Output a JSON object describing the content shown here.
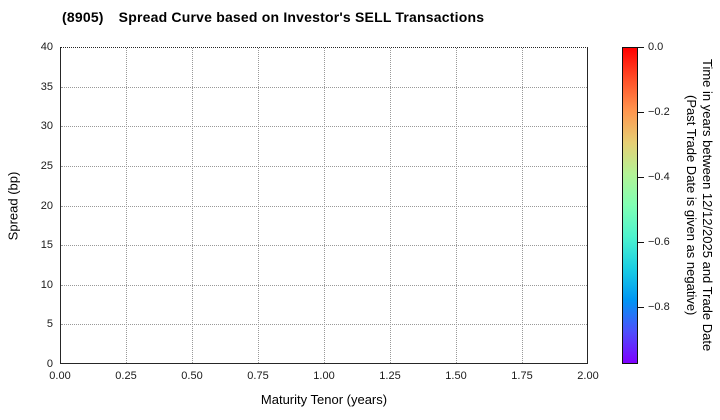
{
  "title": {
    "code": "(8905)",
    "text": "Spread Curve based on Investor's SELL Transactions"
  },
  "chart_data": {
    "type": "scatter",
    "title": "(8905) Spread Curve based on Investor's SELL Transactions",
    "xlabel": "Maturity Tenor (years)",
    "ylabel": "Spread (bp)",
    "xlim": [
      0.0,
      2.0
    ],
    "ylim": [
      0,
      40
    ],
    "xticks": {
      "values": [
        0.0,
        0.25,
        0.5,
        0.75,
        1.0,
        1.25,
        1.5,
        1.75,
        2.0
      ],
      "labels": [
        "0.00",
        "0.25",
        "0.50",
        "0.75",
        "1.00",
        "1.25",
        "1.50",
        "1.75",
        "2.00"
      ]
    },
    "yticks": {
      "values": [
        0,
        5,
        10,
        15,
        20,
        25,
        30,
        35,
        40
      ],
      "labels": [
        "0",
        "5",
        "10",
        "15",
        "20",
        "25",
        "30",
        "35",
        "40"
      ]
    },
    "grid": {
      "show": true,
      "style": "dotted",
      "color": "#999999"
    },
    "points": [],
    "colorbar": {
      "label_line1": "Time in years between 12/12/2025 and Trade Date",
      "label_line2": "(Past Trade Date is given as negative)",
      "ticks": {
        "values": [
          0.0,
          -0.2,
          -0.4,
          -0.6,
          -0.8
        ],
        "labels": [
          "0.0",
          "−0.2",
          "−0.4",
          "−0.6",
          "−0.8"
        ]
      },
      "range": [
        0.0,
        -0.975
      ],
      "colormap": "rainbow",
      "gradient_stops": [
        {
          "pos": 0.0,
          "color": "#ff0000"
        },
        {
          "pos": 0.1,
          "color": "#ff4f28"
        },
        {
          "pos": 0.2,
          "color": "#ff964f"
        },
        {
          "pos": 0.3,
          "color": "#e6ce74"
        },
        {
          "pos": 0.4,
          "color": "#b3f396"
        },
        {
          "pos": 0.5,
          "color": "#80ffb4"
        },
        {
          "pos": 0.6,
          "color": "#4df3ce"
        },
        {
          "pos": 0.7,
          "color": "#1acee3"
        },
        {
          "pos": 0.8,
          "color": "#0096f3"
        },
        {
          "pos": 0.9,
          "color": "#4d4ffc"
        },
        {
          "pos": 1.0,
          "color": "#7f00ff"
        }
      ]
    },
    "colors": {
      "spine": "#262626",
      "text": "#000000",
      "grid": "#999999"
    }
  }
}
